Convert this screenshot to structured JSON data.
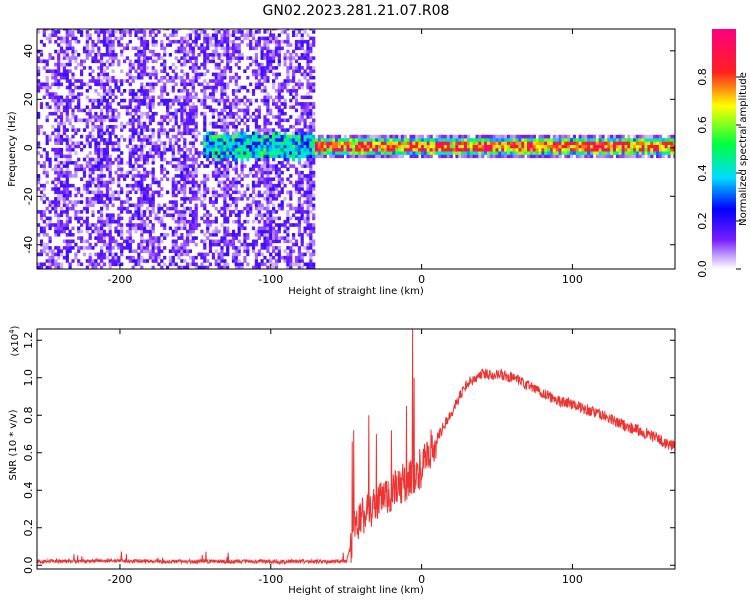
{
  "title": "GN02.2023.281.21.07.R08",
  "chart_data": [
    {
      "type": "heatmap",
      "xlabel": "Height of straight line (km)",
      "ylabel": "Frequency (Hz)",
      "xlim": [
        -255,
        168
      ],
      "ylim": [
        -50,
        49
      ],
      "x_ticks": [
        -200,
        -100,
        0,
        100
      ],
      "x_tick_labels": [
        "-200",
        "-100",
        "0",
        "100"
      ],
      "y_ticks": [
        -40,
        -20,
        0,
        20,
        40
      ],
      "y_tick_labels": [
        "-40",
        "-20",
        "0",
        "20",
        "40"
      ],
      "colorbar": {
        "label": "Normalized spectral amplitude",
        "range": [
          0,
          1
        ],
        "ticks": [
          0.0,
          0.2,
          0.4,
          0.6,
          0.8
        ],
        "tick_labels": [
          "0.0",
          "0.2",
          "0.4",
          "0.6",
          "0.8"
        ]
      },
      "regions": [
        {
          "x_from": -255,
          "x_to": -72,
          "freq_from": -50,
          "freq_to": 49,
          "description": "broadband noise",
          "typical_amplitude": 0.15
        },
        {
          "x_from": -145,
          "x_to": -72,
          "freq_from": -4,
          "freq_to": 4,
          "description": "emerging signal band",
          "typical_amplitude": 0.4
        },
        {
          "x_from": -72,
          "x_to": 168,
          "freq_from": -3,
          "freq_to": 3,
          "description": "strong signal band",
          "typical_amplitude": 0.85
        }
      ]
    },
    {
      "type": "line",
      "xlabel": "Height of straight line (km)",
      "ylabel": "SNR (10 * v/v)",
      "y_multiplier_label": "(x10",
      "y_multiplier_exponent": "4",
      "xlim": [
        -255,
        168
      ],
      "ylim": [
        -0.02,
        1.26
      ],
      "x_ticks": [
        -200,
        -100,
        0,
        100
      ],
      "x_tick_labels": [
        "-200",
        "-100",
        "0",
        "100"
      ],
      "y_ticks": [
        0.0,
        0.2,
        0.4,
        0.6,
        0.8,
        1.0,
        1.2
      ],
      "y_tick_labels": [
        "0.0",
        "0.2",
        "0.4",
        "0.6",
        "0.8",
        "1.0",
        "1.2"
      ],
      "color": "#ee3333",
      "series": [
        {
          "x": [
            -255,
            -230,
            -200,
            -170,
            -140,
            -110,
            -80,
            -60,
            -50,
            -47,
            -45,
            -40,
            -35,
            -30,
            -25,
            -20,
            -15,
            -10,
            -5,
            0,
            10,
            20,
            30,
            40,
            50,
            60,
            70,
            80,
            90,
            100,
            110,
            120,
            130,
            140,
            150,
            160,
            168
          ],
          "values": [
            0.02,
            0.02,
            0.025,
            0.02,
            0.02,
            0.02,
            0.02,
            0.02,
            0.02,
            0.1,
            0.2,
            0.25,
            0.3,
            0.33,
            0.35,
            0.38,
            0.42,
            0.45,
            0.48,
            0.52,
            0.67,
            0.82,
            0.97,
            1.02,
            1.02,
            1.0,
            0.96,
            0.92,
            0.88,
            0.86,
            0.83,
            0.8,
            0.76,
            0.73,
            0.7,
            0.66,
            0.63
          ]
        }
      ],
      "spikes": [
        {
          "x": -46,
          "value": 0.66
        },
        {
          "x": -45,
          "value": 0.72
        },
        {
          "x": -35,
          "value": 0.8
        },
        {
          "x": -30,
          "value": 0.7
        },
        {
          "x": -20,
          "value": 0.72
        },
        {
          "x": -10,
          "value": 0.85
        },
        {
          "x": -6,
          "value": 1.26
        },
        {
          "x": -5,
          "value": 1.0
        }
      ]
    }
  ]
}
